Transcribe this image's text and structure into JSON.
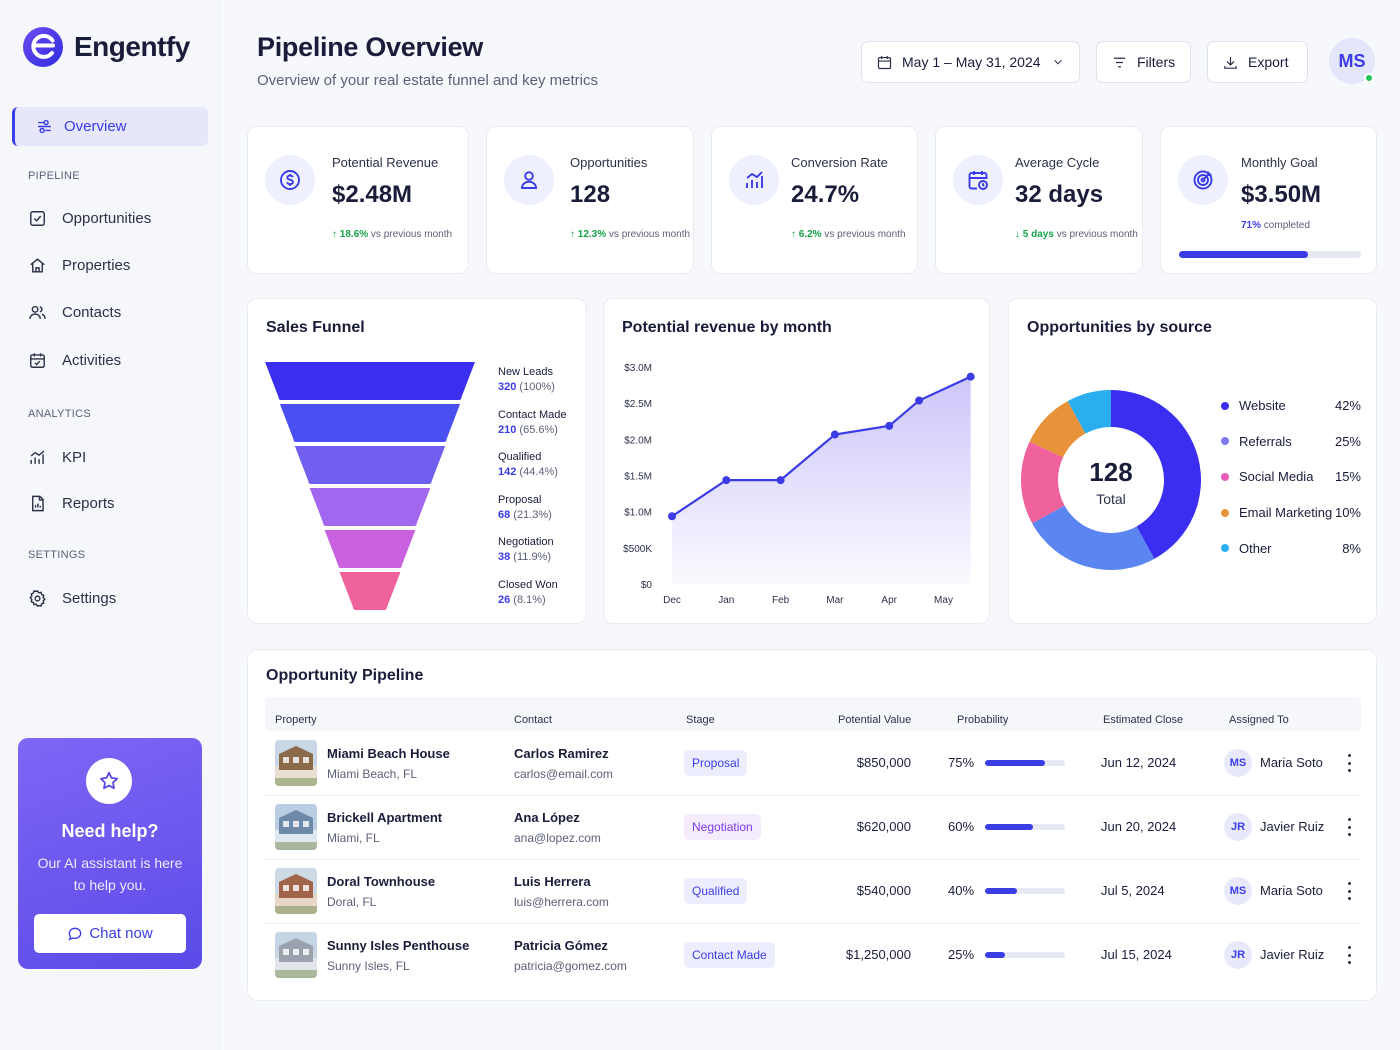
{
  "app": {
    "name": "Engentfy"
  },
  "sidebar": {
    "active": {
      "label": "Overview"
    },
    "sections": {
      "pipeline": "PIPELINE",
      "analytics": "ANALYTICS",
      "settings": "SETTINGS"
    },
    "items": [
      {
        "label": "Opportunities",
        "icon": "checkbox-icon"
      },
      {
        "label": "Properties",
        "icon": "home-icon"
      },
      {
        "label": "Contacts",
        "icon": "users-icon"
      },
      {
        "label": "Activities",
        "icon": "calendar-check-icon"
      },
      {
        "label": "KPI",
        "icon": "bar-chart-icon"
      },
      {
        "label": "Reports",
        "icon": "report-icon"
      },
      {
        "label": "Settings",
        "icon": "gear-icon"
      }
    ],
    "help": {
      "title": "Need help?",
      "text": "Our AI assistant is here to help you.",
      "button": "Chat now"
    }
  },
  "header": {
    "title": "Pipeline Overview",
    "subtitle": "Overview of your real estate funnel and key metrics",
    "date_range": "May 1 – May 31, 2024",
    "filters": "Filters",
    "export": "Export",
    "avatar_initials": "MS"
  },
  "kpis": [
    {
      "label": "Potential Revenue",
      "value": "$2.48M",
      "delta": "18.6%",
      "delta_text": "vs previous month",
      "direction": "up"
    },
    {
      "label": "Opportunities",
      "value": "128",
      "delta": "12.3%",
      "delta_text": "vs previous month",
      "direction": "up"
    },
    {
      "label": "Conversion Rate",
      "value": "24.7%",
      "delta": "6.2%",
      "delta_text": "vs previous month",
      "direction": "up"
    },
    {
      "label": "Average Cycle",
      "value": "32 days",
      "delta": "5 days",
      "delta_text": "vs previous month",
      "direction": "down"
    },
    {
      "label": "Monthly Goal",
      "value": "$3.50M",
      "progress_text": "71%",
      "progress_suffix": "completed",
      "progress": 0.71
    }
  ],
  "funnel": {
    "title": "Sales Funnel",
    "stages": [
      {
        "name": "New Leads",
        "count": "320",
        "pct": "(100%)",
        "color": "#3b2ef0"
      },
      {
        "name": "Contact Made",
        "count": "210",
        "pct": "(65.6%)",
        "color": "#4a4ff2"
      },
      {
        "name": "Qualified",
        "count": "142",
        "pct": "(44.4%)",
        "color": "#7160f0"
      },
      {
        "name": "Proposal",
        "count": "68",
        "pct": "(21.3%)",
        "color": "#a167ee"
      },
      {
        "name": "Negotiation",
        "count": "38",
        "pct": "(11.9%)",
        "color": "#c860e0"
      },
      {
        "name": "Closed Won",
        "count": "26",
        "pct": "(8.1%)",
        "color": "#f0629c"
      }
    ]
  },
  "revenue_chart": {
    "title": "Potential revenue by month",
    "y_ticks": [
      "$3.0M",
      "$2.5M",
      "$2.0M",
      "$1.5M",
      "$1.0M",
      "$500K",
      "$0"
    ]
  },
  "chart_data": {
    "type": "area",
    "x": [
      "Dec",
      "Jan",
      "Feb",
      "Mar",
      "Apr",
      "May"
    ],
    "points": [
      {
        "x": 0.0,
        "y": 0.95
      },
      {
        "x": 1.0,
        "y": 1.45
      },
      {
        "x": 2.0,
        "y": 1.45
      },
      {
        "x": 3.0,
        "y": 2.08
      },
      {
        "x": 4.0,
        "y": 2.2
      },
      {
        "x": 4.55,
        "y": 2.55
      },
      {
        "x": 5.5,
        "y": 2.88
      }
    ],
    "ylim": [
      0,
      3.0
    ],
    "unit": "$M",
    "grid": false
  },
  "source_chart": {
    "title": "Opportunities by source",
    "center_value": "128",
    "center_label": "Total",
    "slices": [
      {
        "name": "Website",
        "pct": "42%",
        "value": 42,
        "color": "#3b2ef0"
      },
      {
        "name": "Referrals",
        "pct": "25%",
        "value": 25,
        "color": "#5b86f2"
      },
      {
        "name": "Social Media",
        "pct": "15%",
        "value": 15,
        "color": "#f0629c"
      },
      {
        "name": "Email Marketing",
        "pct": "10%",
        "value": 10,
        "color": "#e8923a"
      },
      {
        "name": "Other",
        "pct": "8%",
        "value": 8,
        "color": "#2aaef0"
      }
    ],
    "legend_colors": [
      "#3b2ef0",
      "#7f7af0",
      "#e85cb8",
      "#e8923a",
      "#2aaef0"
    ]
  },
  "pipeline": {
    "title": "Opportunity Pipeline",
    "columns": [
      "Property",
      "Contact",
      "Stage",
      "Potential Value",
      "Probability",
      "Estimated Close",
      "Assigned To"
    ],
    "rows": [
      {
        "property": "Miami Beach House",
        "location": "Miami Beach, FL",
        "contact": "Carlos Ramirez",
        "email": "carlos@email.com",
        "stage": "Proposal",
        "value": "$850,000",
        "probability": "75%",
        "prob": 0.75,
        "close": "Jun 12, 2024",
        "initials": "MS",
        "assignee": "Maria Soto"
      },
      {
        "property": "Brickell Apartment",
        "location": "Miami, FL",
        "contact": "Ana López",
        "email": "ana@lopez.com",
        "stage": "Negotiation",
        "value": "$620,000",
        "probability": "60%",
        "prob": 0.6,
        "close": "Jun 20, 2024",
        "initials": "JR",
        "assignee": "Javier Ruiz"
      },
      {
        "property": "Doral Townhouse",
        "location": "Doral, FL",
        "contact": "Luis Herrera",
        "email": "luis@herrera.com",
        "stage": "Qualified",
        "value": "$540,000",
        "probability": "40%",
        "prob": 0.4,
        "close": "Jul 5, 2024",
        "initials": "MS",
        "assignee": "Maria Soto"
      },
      {
        "property": "Sunny Isles Penthouse",
        "location": "Sunny Isles, FL",
        "contact": "Patricia Gómez",
        "email": "patricia@gomez.com",
        "stage": "Contact Made",
        "value": "$1,250,000",
        "probability": "25%",
        "prob": 0.25,
        "close": "Jul 15, 2024",
        "initials": "JR",
        "assignee": "Javier Ruiz"
      }
    ]
  }
}
